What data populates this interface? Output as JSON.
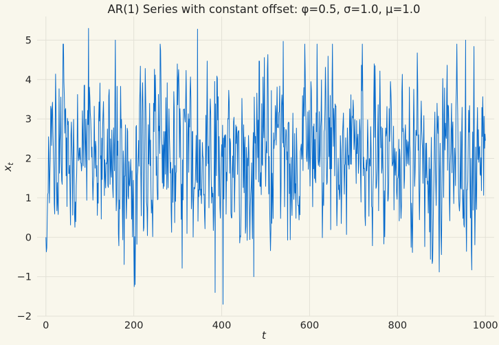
{
  "chart_data": {
    "type": "line",
    "title": "AR(1) Series with constant offset: φ=0.5, σ=1.0, μ=1.0",
    "xlabel": "t",
    "ylabel_main": "x",
    "ylabel_sub": "t",
    "xlim": [
      -20,
      1020
    ],
    "ylim": [
      -2,
      5.6
    ],
    "x_ticks": [
      0,
      200,
      400,
      600,
      800,
      1000
    ],
    "x_tick_labels": [
      "0",
      "200",
      "400",
      "600",
      "800",
      "1000"
    ],
    "y_ticks": [
      -2,
      -1,
      0,
      1,
      2,
      3,
      4,
      5
    ],
    "y_tick_labels": [
      "−2",
      "−1",
      "0",
      "1",
      "2",
      "3",
      "4",
      "5"
    ],
    "grid": true,
    "colors": {
      "background": "#f9f7ec",
      "line": "#0a6ccc",
      "grid": "#e3e1d6"
    },
    "series": [
      {
        "x_start": 0,
        "x_step": 1,
        "count": 1001,
        "values_excerpt_note_free": true,
        "y_start": 0.0,
        "y_second": -0.37,
        "y_end": 2.45,
        "phi": 0.5,
        "mu": 1.0,
        "sigma": 1.0,
        "y_min": -1.7,
        "y_max": 5.3,
        "extremes": [
          {
            "x": 97,
            "y": 5.3
          },
          {
            "x": 345,
            "y": 5.28
          },
          {
            "x": 403,
            "y": -1.7
          },
          {
            "x": 385,
            "y": -1.4
          },
          {
            "x": 203,
            "y": -1.2
          },
          {
            "x": 473,
            "y": -1.0
          },
          {
            "x": 955,
            "y": 5.0
          },
          {
            "x": 158,
            "y": 5.0
          },
          {
            "x": 540,
            "y": 4.97
          }
        ]
      }
    ]
  }
}
